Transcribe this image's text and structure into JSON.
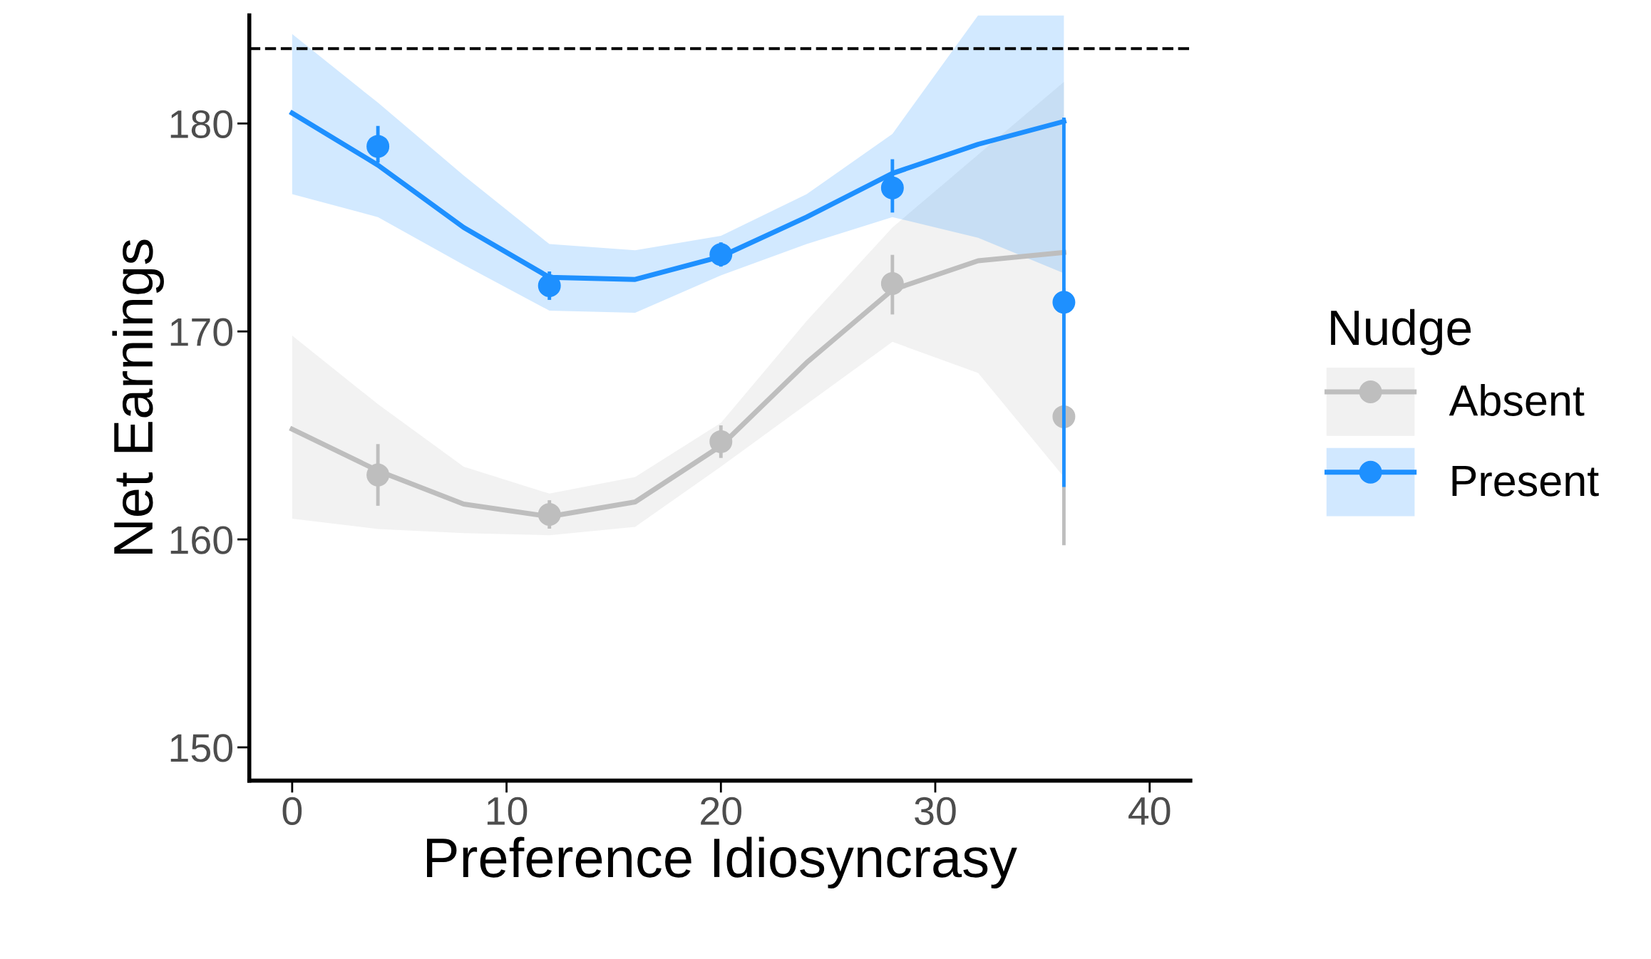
{
  "chart_data": {
    "type": "scatter",
    "xlabel": "Preference Idiosyncrasy",
    "ylabel": "Net Earnings",
    "legend_title": "Nudge",
    "legend": "right",
    "grid": false,
    "marker": "circle",
    "xlim": [
      -2,
      41.9
    ],
    "xticks": [
      0,
      10,
      20,
      30,
      40
    ],
    "ylim": [
      148.4,
      185.2
    ],
    "yticks": [
      150,
      160,
      170,
      180
    ],
    "ref_lines": [
      {
        "axis": "y",
        "value": 183.6,
        "line_style": "dashed",
        "color": "#000000"
      }
    ],
    "series": [
      {
        "type": "line",
        "marker": "none",
        "color": "#bebebe",
        "x": [
          0,
          4,
          8,
          12,
          16,
          20,
          24,
          28,
          32,
          36
        ],
        "values": [
          165.3,
          163.3,
          161.7,
          161.1,
          161.8,
          164.5,
          168.5,
          172,
          173.4,
          173.8
        ],
        "lower": [
          161,
          160.5,
          160.3,
          160.2,
          160.6,
          163.5,
          166.5,
          169.5,
          168,
          163
        ],
        "upper": [
          169.8,
          166.5,
          163.5,
          162.2,
          163,
          165.6,
          170.5,
          175,
          178.5,
          182
        ]
      },
      {
        "type": "line",
        "marker": "none",
        "color": "#1e90ff",
        "x": [
          0,
          4,
          8,
          12,
          16,
          20,
          24,
          28,
          32,
          36
        ],
        "values": [
          180.5,
          178,
          175,
          172.6,
          172.5,
          173.6,
          175.5,
          177.6,
          179,
          180.1
        ],
        "lower": [
          176.6,
          175.5,
          173.2,
          171,
          170.9,
          172.7,
          174.2,
          175.5,
          174.5,
          172.8
        ],
        "upper": [
          184.3,
          181,
          177.5,
          174.2,
          173.9,
          174.6,
          176.6,
          179.5,
          185.2,
          185.2
        ]
      },
      {
        "name": "Absent",
        "color": "#bebebe",
        "x": [
          4,
          12,
          20,
          28,
          36
        ],
        "values": [
          163.1,
          161.2,
          164.7,
          172.3,
          165.9
        ],
        "errors": [
          [
            161.7,
            164.5
          ],
          [
            160.6,
            161.8
          ],
          [
            164,
            165.4
          ],
          [
            170.9,
            173.6
          ],
          [
            159.8,
            172
          ]
        ]
      },
      {
        "name": "Present",
        "color": "#1e90ff",
        "x": [
          4,
          12,
          20,
          28,
          36
        ],
        "values": [
          178.9,
          172.2,
          173.7,
          176.9,
          171.4
        ],
        "errors": [
          [
            178.2,
            179.8
          ],
          [
            171.6,
            172.8
          ],
          [
            173.2,
            174.2
          ],
          [
            175.8,
            178.2
          ],
          [
            162.6,
            180.2
          ]
        ]
      }
    ]
  }
}
